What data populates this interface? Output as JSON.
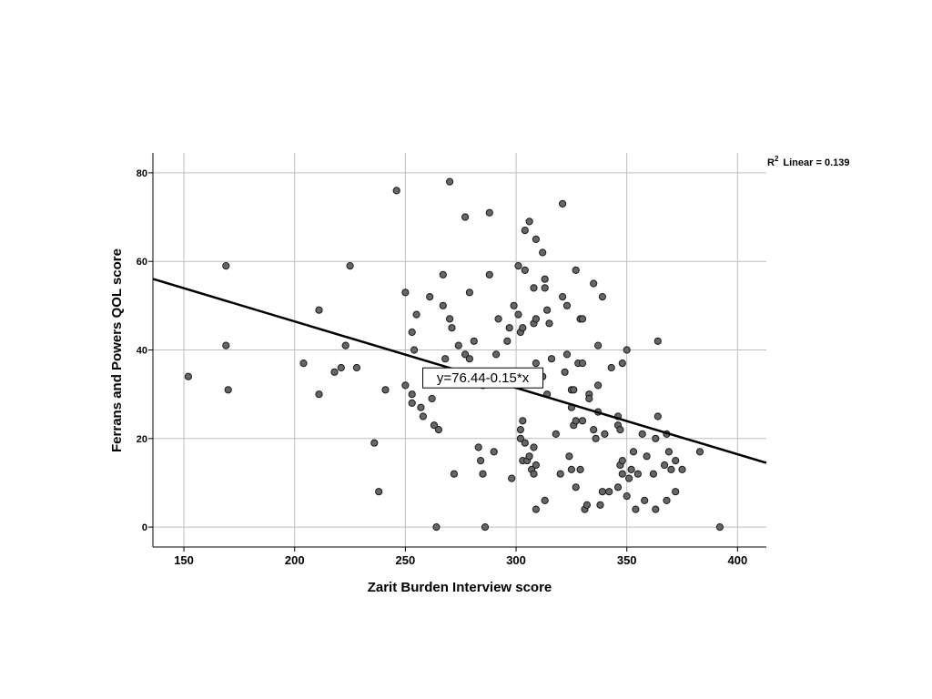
{
  "chart_data": {
    "type": "scatter",
    "xlabel": "Zarit Burden Interview score",
    "ylabel": "Ferrans and Powers QOL score",
    "xlim": [
      136,
      413
    ],
    "ylim": [
      -4.5,
      84.5
    ],
    "x_ticks": [
      150,
      200,
      250,
      300,
      350,
      400
    ],
    "y_ticks": [
      0,
      20,
      40,
      60,
      80
    ],
    "grid": true,
    "fit": {
      "type": "linear",
      "intercept": 76.44,
      "slope": -0.15,
      "equation_label": "y=76.44-0.15*x",
      "r2_label": "R",
      "r2_exponent": "2",
      "r2_text": "Linear = 0.139"
    },
    "points": [
      [
        152,
        34
      ],
      [
        169,
        59
      ],
      [
        169,
        41
      ],
      [
        170,
        31
      ],
      [
        204,
        37
      ],
      [
        211,
        49
      ],
      [
        211,
        30
      ],
      [
        218,
        35
      ],
      [
        221,
        36
      ],
      [
        223,
        41
      ],
      [
        225,
        59
      ],
      [
        228,
        36
      ],
      [
        236,
        19
      ],
      [
        238,
        8
      ],
      [
        241,
        31
      ],
      [
        246,
        76
      ],
      [
        250,
        53
      ],
      [
        250,
        32
      ],
      [
        253,
        44
      ],
      [
        253,
        30
      ],
      [
        253,
        28
      ],
      [
        254,
        40
      ],
      [
        255,
        48
      ],
      [
        257,
        27
      ],
      [
        258,
        25
      ],
      [
        261,
        52
      ],
      [
        262,
        29
      ],
      [
        263,
        23
      ],
      [
        264,
        0
      ],
      [
        265,
        22
      ],
      [
        267,
        57
      ],
      [
        267,
        50
      ],
      [
        268,
        38
      ],
      [
        270,
        47
      ],
      [
        270,
        78
      ],
      [
        271,
        45
      ],
      [
        272,
        12
      ],
      [
        274,
        41
      ],
      [
        277,
        70
      ],
      [
        277,
        39
      ],
      [
        279,
        53
      ],
      [
        279,
        38
      ],
      [
        281,
        42
      ],
      [
        283,
        18
      ],
      [
        284,
        15
      ],
      [
        285,
        12
      ],
      [
        285,
        32
      ],
      [
        286,
        0
      ],
      [
        288,
        71
      ],
      [
        288,
        57
      ],
      [
        290,
        17
      ],
      [
        291,
        39
      ],
      [
        292,
        47
      ],
      [
        296,
        42
      ],
      [
        297,
        45
      ],
      [
        298,
        11
      ],
      [
        299,
        50
      ],
      [
        301,
        59
      ],
      [
        301,
        48
      ],
      [
        302,
        44
      ],
      [
        302,
        22
      ],
      [
        302,
        20
      ],
      [
        303,
        24
      ],
      [
        303,
        45
      ],
      [
        303,
        15
      ],
      [
        304,
        19
      ],
      [
        304,
        67
      ],
      [
        304,
        58
      ],
      [
        305,
        15
      ],
      [
        306,
        16
      ],
      [
        306,
        69
      ],
      [
        307,
        13
      ],
      [
        308,
        18
      ],
      [
        308,
        54
      ],
      [
        308,
        46
      ],
      [
        308,
        12
      ],
      [
        309,
        4
      ],
      [
        309,
        65
      ],
      [
        309,
        47
      ],
      [
        309,
        37
      ],
      [
        309,
        14
      ],
      [
        312,
        62
      ],
      [
        312,
        34
      ],
      [
        313,
        6
      ],
      [
        313,
        56
      ],
      [
        313,
        54
      ],
      [
        314,
        49
      ],
      [
        314,
        30
      ],
      [
        315,
        46
      ],
      [
        316,
        38
      ],
      [
        318,
        21
      ],
      [
        320,
        12
      ],
      [
        321,
        52
      ],
      [
        321,
        73
      ],
      [
        322,
        35
      ],
      [
        323,
        39
      ],
      [
        323,
        50
      ],
      [
        324,
        16
      ],
      [
        325,
        27
      ],
      [
        325,
        13
      ],
      [
        325,
        31
      ],
      [
        326,
        31
      ],
      [
        326,
        23
      ],
      [
        327,
        58
      ],
      [
        327,
        24
      ],
      [
        327,
        9
      ],
      [
        328,
        37
      ],
      [
        329,
        47
      ],
      [
        329,
        13
      ],
      [
        330,
        47
      ],
      [
        330,
        24
      ],
      [
        330,
        37
      ],
      [
        331,
        4
      ],
      [
        332,
        5
      ],
      [
        333,
        30
      ],
      [
        333,
        29
      ],
      [
        335,
        55
      ],
      [
        335,
        22
      ],
      [
        336,
        20
      ],
      [
        337,
        26
      ],
      [
        337,
        32
      ],
      [
        337,
        41
      ],
      [
        338,
        5
      ],
      [
        339,
        52
      ],
      [
        339,
        8
      ],
      [
        340,
        21
      ],
      [
        342,
        8
      ],
      [
        343,
        36
      ],
      [
        346,
        25
      ],
      [
        346,
        23
      ],
      [
        346,
        9
      ],
      [
        347,
        14
      ],
      [
        347,
        22
      ],
      [
        348,
        37
      ],
      [
        348,
        15
      ],
      [
        348,
        12
      ],
      [
        350,
        40
      ],
      [
        350,
        7
      ],
      [
        351,
        11
      ],
      [
        352,
        13
      ],
      [
        353,
        17
      ],
      [
        354,
        4
      ],
      [
        355,
        12
      ],
      [
        357,
        21
      ],
      [
        358,
        6
      ],
      [
        359,
        16
      ],
      [
        362,
        12
      ],
      [
        363,
        20
      ],
      [
        363,
        4
      ],
      [
        364,
        42
      ],
      [
        364,
        25
      ],
      [
        367,
        14
      ],
      [
        368,
        21
      ],
      [
        368,
        6
      ],
      [
        369,
        17
      ],
      [
        370,
        13
      ],
      [
        372,
        15
      ],
      [
        372,
        8
      ],
      [
        375,
        13
      ],
      [
        383,
        17
      ],
      [
        392,
        0
      ]
    ]
  }
}
